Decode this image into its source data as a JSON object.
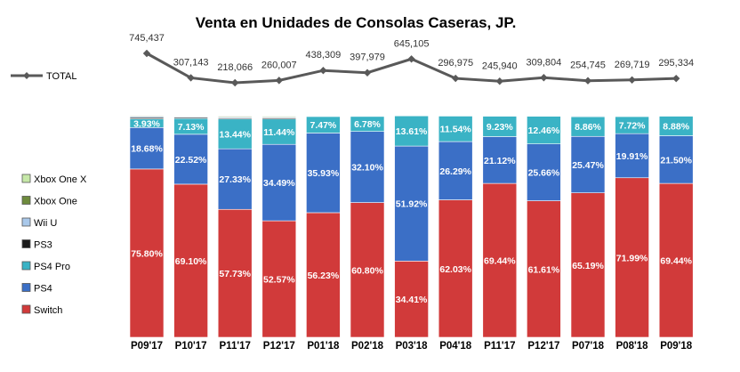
{
  "chart_data": {
    "type": "bar",
    "stacked": true,
    "title": "Venta en Unidades de Consolas  Caseras, JP.",
    "categories": [
      "P09'17",
      "P10'17",
      "P11'17",
      "P12'17",
      "P01'18",
      "P02'18",
      "P03'18",
      "P04'18",
      "P11'17",
      "P12'17",
      "P07'18",
      "P08'18",
      "P09'18"
    ],
    "series": [
      {
        "name": "Switch",
        "color": "#d13a3a",
        "values": [
          75.8,
          69.1,
          57.73,
          52.57,
          56.23,
          60.8,
          34.41,
          62.03,
          69.44,
          61.61,
          65.19,
          71.99,
          69.44
        ],
        "labels": [
          "75.80%",
          "69.10%",
          "57.73%",
          "52.57%",
          "56.23%",
          "60.80%",
          "34.41%",
          "62.03%",
          "69.44%",
          "61.61%",
          "65.19%",
          "71.99%",
          "69.44%"
        ]
      },
      {
        "name": "PS4",
        "color": "#3b6fc6",
        "values": [
          18.68,
          22.52,
          27.33,
          34.49,
          35.93,
          32.1,
          51.92,
          26.29,
          21.12,
          25.66,
          25.47,
          19.91,
          21.5
        ],
        "labels": [
          "18.68%",
          "22.52%",
          "27.33%",
          "34.49%",
          "35.93%",
          "32.10%",
          "51.92%",
          "26.29%",
          "21.12%",
          "25.66%",
          "25.47%",
          "19.91%",
          "21.50%"
        ]
      },
      {
        "name": "PS4 Pro",
        "color": "#3ab3c5",
        "values": [
          3.93,
          7.13,
          13.44,
          11.44,
          7.47,
          6.78,
          13.61,
          11.54,
          9.23,
          12.46,
          8.86,
          7.72,
          8.88
        ],
        "labels": [
          "3.93%",
          "7.13%",
          "13.44%",
          "11.44%",
          "7.47%",
          "6.78%",
          "13.61%",
          "11.54%",
          "9.23%",
          "12.46%",
          "8.86%",
          "7.72%",
          "8.88%"
        ]
      },
      {
        "name": "PS3",
        "color": "#1a1a1a",
        "values": [
          0.6,
          0.5,
          0.4,
          0.5,
          0.1,
          0.1,
          0.05,
          0.1,
          0.1,
          0.1,
          0.1,
          0.1,
          0.05
        ]
      },
      {
        "name": "Wii U",
        "color": "#a9c8ea",
        "values": [
          0.5,
          0.4,
          0.5,
          0.4,
          0.1,
          0.1,
          0.02,
          0.02,
          0.05,
          0.1,
          0.3,
          0.2,
          0.1
        ]
      },
      {
        "name": "Xbox One",
        "color": "#6e8b3d",
        "values": [
          0.3,
          0.25,
          0.4,
          0.3,
          0.1,
          0.1,
          0.01,
          0.01,
          0.05,
          0.05,
          0.05,
          0.05,
          0.02
        ]
      },
      {
        "name": "Xbox One X",
        "color": "#c6e8a8",
        "values": [
          0,
          0.1,
          0.2,
          0.3,
          0.06,
          0.02,
          0.01,
          0.01,
          0.01,
          0.02,
          0.03,
          0.03,
          0.01
        ]
      }
    ],
    "total": {
      "name": "TOTAL",
      "color": "#595959",
      "values": [
        745437,
        307143,
        218066,
        260007,
        438309,
        397979,
        645105,
        296975,
        245940,
        309804,
        254745,
        269719,
        295334
      ],
      "labels": [
        "745,437",
        "307,143",
        "218,066",
        "260,007",
        "438,309",
        "397,979",
        "645,105",
        "296,975",
        "245,940",
        "309,804",
        "254,745",
        "269,719",
        "295,334"
      ]
    },
    "ylim": [
      0,
      100
    ],
    "legend_placement": "left",
    "grid": false
  }
}
